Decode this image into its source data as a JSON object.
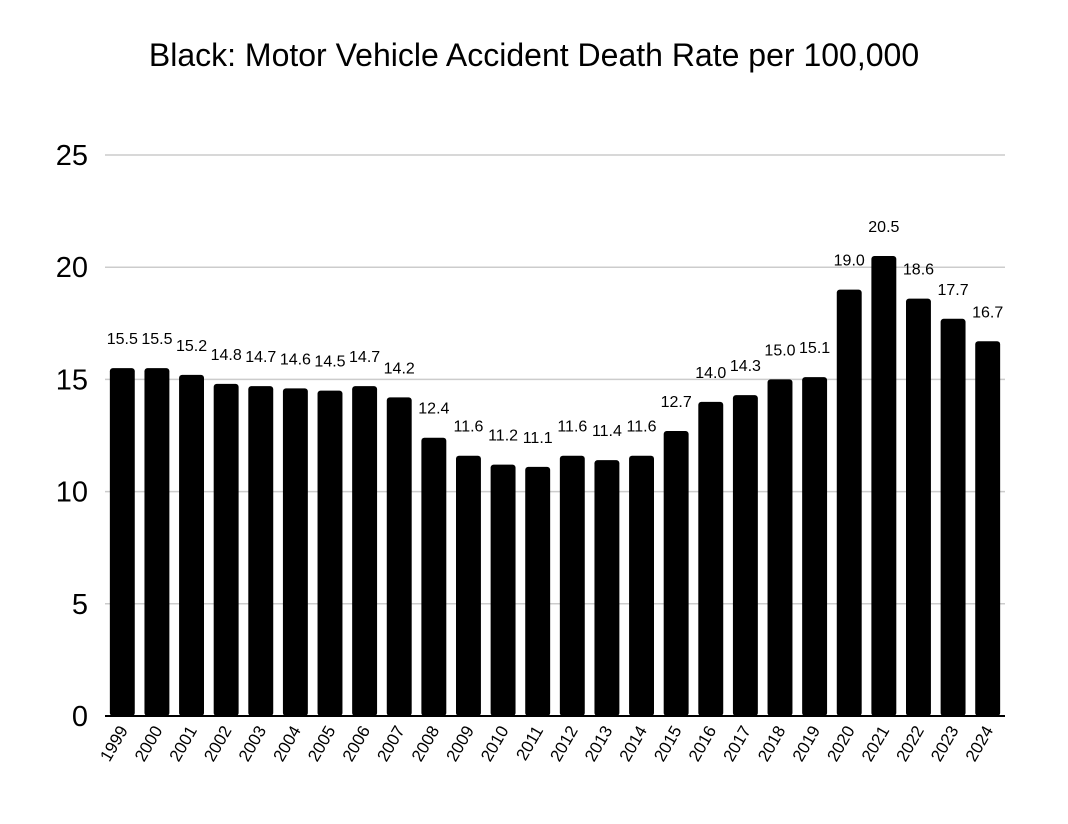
{
  "chart_data": {
    "type": "bar",
    "title": "Black: Motor Vehicle Accident Death Rate per 100,000",
    "xlabel": "",
    "ylabel": "",
    "ylim": [
      0,
      25
    ],
    "yticks": [
      "0",
      "5",
      "10",
      "15",
      "20",
      "25"
    ],
    "grid": true,
    "categories": [
      "1999",
      "2000",
      "2001",
      "2002",
      "2003",
      "2004",
      "2005",
      "2006",
      "2007",
      "2008",
      "2009",
      "2010",
      "2011",
      "2012",
      "2013",
      "2014",
      "2015",
      "2016",
      "2017",
      "2018",
      "2019",
      "2020",
      "2021",
      "2022",
      "2023",
      "2024"
    ],
    "values": [
      15.5,
      15.5,
      15.2,
      14.8,
      14.7,
      14.6,
      14.5,
      14.7,
      14.2,
      12.4,
      11.6,
      11.2,
      11.1,
      11.6,
      11.4,
      11.6,
      12.7,
      14.0,
      14.3,
      15.0,
      15.1,
      19.0,
      20.5,
      18.6,
      17.7,
      16.7
    ],
    "data_labels": [
      "15.5",
      "15.5",
      "15.2",
      "14.8",
      "14.7",
      "14.6",
      "14.5",
      "14.7",
      "14.2",
      "12.4",
      "11.6",
      "11.2",
      "11.1",
      "11.6",
      "11.4",
      "11.6",
      "12.7",
      "14.0",
      "14.3",
      "15.0",
      "15.1",
      "19.0",
      "20.5",
      "18.6",
      "17.7",
      "16.7"
    ],
    "bar_color": "#000000",
    "grid_color": "#cccccc"
  }
}
